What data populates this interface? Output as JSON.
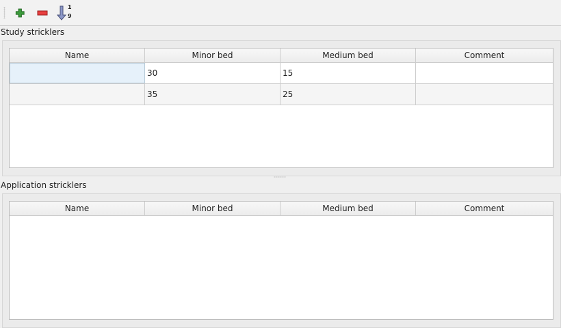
{
  "toolbar": {
    "add": "plus-icon",
    "remove": "minus-icon",
    "sort": "sort-ascending-icon",
    "sort_digits_top": "1",
    "sort_digits_bottom": "9"
  },
  "study": {
    "title": "Study stricklers",
    "columns": [
      "Name",
      "Minor bed",
      "Medium bed",
      "Comment"
    ],
    "rows": [
      [
        "",
        "30",
        "15",
        ""
      ],
      [
        "",
        "35",
        "25",
        ""
      ]
    ]
  },
  "application": {
    "title": "Application stricklers",
    "columns": [
      "Name",
      "Minor bed",
      "Medium bed",
      "Comment"
    ],
    "rows": []
  }
}
